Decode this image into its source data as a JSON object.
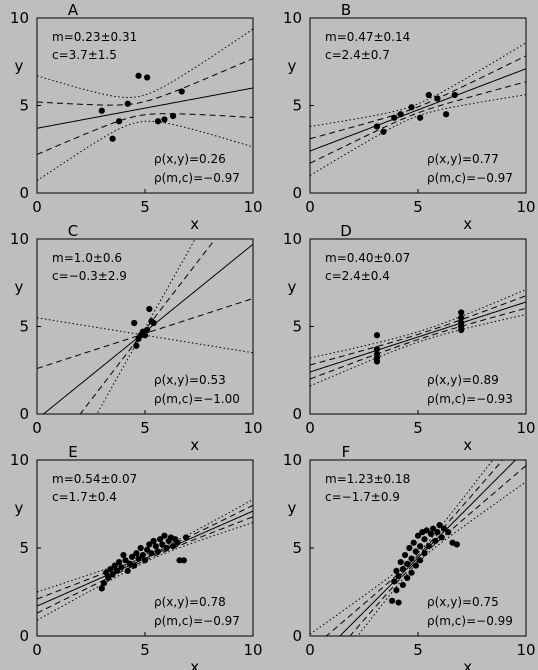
{
  "chart_data": [
    {
      "panel": "A",
      "type": "scatter",
      "xlabel": "x",
      "ylabel": "y",
      "xlim": [
        0,
        10
      ],
      "ylim": [
        0,
        10
      ],
      "x_ticks": [
        "0",
        "5",
        "10"
      ],
      "y_ticks": [
        "0",
        "5",
        "10"
      ],
      "fit_text": "m=0.23±0.31",
      "intercept_text": "c=3.7±1.5",
      "rho_xy_text": "ρ(x,y)=0.26",
      "rho_mc_text": "ρ(m,c)=−0.97",
      "fit": {
        "m": 0.23,
        "c": 3.7,
        "sm": 0.31,
        "sc": 1.5,
        "rho_mc": -0.97
      },
      "points": [
        [
          3.0,
          4.7
        ],
        [
          3.5,
          3.1
        ],
        [
          3.8,
          4.1
        ],
        [
          4.2,
          5.1
        ],
        [
          4.7,
          6.7
        ],
        [
          5.1,
          6.6
        ],
        [
          5.6,
          4.1
        ],
        [
          5.9,
          4.2
        ],
        [
          6.3,
          4.4
        ],
        [
          6.7,
          5.8
        ]
      ]
    },
    {
      "panel": "B",
      "type": "scatter",
      "xlabel": "x",
      "ylabel": "y",
      "xlim": [
        0,
        10
      ],
      "ylim": [
        0,
        10
      ],
      "x_ticks": [
        "0",
        "5",
        "10"
      ],
      "y_ticks": [
        "0",
        "5",
        "10"
      ],
      "fit_text": "m=0.47±0.14",
      "intercept_text": "c=2.4±0.7",
      "rho_xy_text": "ρ(x,y)=0.77",
      "rho_mc_text": "ρ(m,c)=−0.97",
      "fit": {
        "m": 0.47,
        "c": 2.4,
        "sm": 0.14,
        "sc": 0.7,
        "rho_mc": -0.97
      },
      "points": [
        [
          3.1,
          3.8
        ],
        [
          3.4,
          3.5
        ],
        [
          3.9,
          4.3
        ],
        [
          4.2,
          4.5
        ],
        [
          4.7,
          4.9
        ],
        [
          5.1,
          4.3
        ],
        [
          5.5,
          5.6
        ],
        [
          5.9,
          5.4
        ],
        [
          6.3,
          4.5
        ],
        [
          6.7,
          5.6
        ]
      ]
    },
    {
      "panel": "C",
      "type": "scatter",
      "xlabel": "x",
      "ylabel": "y",
      "xlim": [
        0,
        10
      ],
      "ylim": [
        0,
        10
      ],
      "x_ticks": [
        "0",
        "5",
        "10"
      ],
      "y_ticks": [
        "0",
        "5",
        "10"
      ],
      "fit_text": "m=1.0±0.6",
      "intercept_text": "c=−0.3±2.9",
      "rho_xy_text": "ρ(x,y)=0.53",
      "rho_mc_text": "ρ(m,c)=−1.00",
      "fit": {
        "m": 1.0,
        "c": -0.3,
        "sm": 0.6,
        "sc": 2.9,
        "rho_mc": -1.0
      },
      "points": [
        [
          4.5,
          5.2
        ],
        [
          4.6,
          3.9
        ],
        [
          4.7,
          4.3
        ],
        [
          4.8,
          4.5
        ],
        [
          4.9,
          4.7
        ],
        [
          5.0,
          4.5
        ],
        [
          5.1,
          4.8
        ],
        [
          5.2,
          6.0
        ],
        [
          5.3,
          5.3
        ],
        [
          5.4,
          5.2
        ]
      ]
    },
    {
      "panel": "D",
      "type": "scatter",
      "xlabel": "x",
      "ylabel": "y",
      "xlim": [
        0,
        10
      ],
      "ylim": [
        0,
        10
      ],
      "x_ticks": [
        "0",
        "5",
        "10"
      ],
      "y_ticks": [
        "0",
        "5",
        "10"
      ],
      "fit_text": "m=0.40±0.07",
      "intercept_text": "c=2.4±0.4",
      "rho_xy_text": "ρ(x,y)=0.89",
      "rho_mc_text": "ρ(m,c)=−0.93",
      "fit": {
        "m": 0.4,
        "c": 2.4,
        "sm": 0.07,
        "sc": 0.4,
        "rho_mc": -0.93
      },
      "points": [
        [
          3.1,
          4.5
        ],
        [
          3.1,
          3.7
        ],
        [
          3.1,
          3.4
        ],
        [
          3.1,
          3.2
        ],
        [
          3.1,
          3.0
        ],
        [
          7.0,
          5.8
        ],
        [
          7.0,
          5.5
        ],
        [
          7.0,
          5.2
        ],
        [
          7.0,
          5.0
        ],
        [
          7.0,
          4.8
        ]
      ]
    },
    {
      "panel": "E",
      "type": "scatter",
      "xlabel": "x",
      "ylabel": "y",
      "xlim": [
        0,
        10
      ],
      "ylim": [
        0,
        10
      ],
      "x_ticks": [
        "0",
        "5",
        "10"
      ],
      "y_ticks": [
        "0",
        "5",
        "10"
      ],
      "fit_text": "m=0.54±0.07",
      "intercept_text": "c=1.7±0.4",
      "rho_xy_text": "ρ(x,y)=0.78",
      "rho_mc_text": "ρ(m,c)=−0.97",
      "fit": {
        "m": 0.54,
        "c": 1.7,
        "sm": 0.07,
        "sc": 0.4,
        "rho_mc": -0.97
      },
      "points": [
        [
          3.0,
          2.7
        ],
        [
          3.1,
          3.0
        ],
        [
          3.2,
          3.6
        ],
        [
          3.3,
          3.3
        ],
        [
          3.4,
          3.8
        ],
        [
          3.5,
          3.5
        ],
        [
          3.6,
          4.0
        ],
        [
          3.7,
          3.7
        ],
        [
          3.8,
          4.2
        ],
        [
          3.9,
          3.9
        ],
        [
          4.0,
          4.6
        ],
        [
          4.1,
          4.3
        ],
        [
          4.2,
          3.7
        ],
        [
          4.3,
          4.1
        ],
        [
          4.4,
          4.5
        ],
        [
          4.5,
          4.0
        ],
        [
          4.6,
          4.7
        ],
        [
          4.7,
          4.4
        ],
        [
          4.8,
          5.0
        ],
        [
          4.9,
          4.6
        ],
        [
          5.0,
          4.3
        ],
        [
          5.1,
          4.9
        ],
        [
          5.2,
          5.2
        ],
        [
          5.3,
          4.7
        ],
        [
          5.4,
          5.4
        ],
        [
          5.5,
          5.1
        ],
        [
          5.6,
          4.8
        ],
        [
          5.7,
          5.5
        ],
        [
          5.8,
          5.2
        ],
        [
          5.9,
          5.7
        ],
        [
          6.0,
          5.0
        ],
        [
          6.1,
          5.4
        ],
        [
          6.2,
          5.6
        ],
        [
          6.3,
          5.1
        ],
        [
          6.4,
          5.5
        ],
        [
          6.5,
          5.3
        ],
        [
          6.6,
          4.3
        ],
        [
          6.8,
          4.3
        ],
        [
          6.9,
          5.6
        ]
      ]
    },
    {
      "panel": "F",
      "type": "scatter",
      "xlabel": "x",
      "ylabel": "y",
      "xlim": [
        0,
        10
      ],
      "ylim": [
        0,
        10
      ],
      "x_ticks": [
        "0",
        "5",
        "10"
      ],
      "y_ticks": [
        "0",
        "5",
        "10"
      ],
      "fit_text": "m=1.23±0.18",
      "intercept_text": "c=−1.7±0.9",
      "rho_xy_text": "ρ(x,y)=0.75",
      "rho_mc_text": "ρ(m,c)=−0.99",
      "fit": {
        "m": 1.23,
        "c": -1.7,
        "sm": 0.18,
        "sc": 0.9,
        "rho_mc": -0.99
      },
      "points": [
        [
          3.8,
          2.0
        ],
        [
          3.9,
          3.1
        ],
        [
          4.0,
          3.7
        ],
        [
          4.0,
          2.6
        ],
        [
          4.1,
          1.9
        ],
        [
          4.1,
          3.4
        ],
        [
          4.2,
          4.2
        ],
        [
          4.3,
          2.9
        ],
        [
          4.3,
          3.8
        ],
        [
          4.4,
          4.6
        ],
        [
          4.5,
          3.3
        ],
        [
          4.5,
          4.1
        ],
        [
          4.6,
          5.0
        ],
        [
          4.7,
          3.6
        ],
        [
          4.7,
          4.4
        ],
        [
          4.8,
          5.3
        ],
        [
          4.9,
          4.0
        ],
        [
          4.9,
          4.8
        ],
        [
          5.0,
          5.7
        ],
        [
          5.1,
          4.3
        ],
        [
          5.1,
          5.1
        ],
        [
          5.2,
          5.9
        ],
        [
          5.3,
          4.7
        ],
        [
          5.3,
          5.5
        ],
        [
          5.4,
          6.0
        ],
        [
          5.5,
          5.1
        ],
        [
          5.6,
          5.8
        ],
        [
          5.7,
          6.1
        ],
        [
          5.8,
          5.4
        ],
        [
          5.9,
          5.9
        ],
        [
          6.0,
          6.3
        ],
        [
          6.1,
          5.6
        ],
        [
          6.2,
          6.1
        ],
        [
          6.4,
          5.9
        ],
        [
          6.6,
          5.3
        ],
        [
          6.8,
          5.2
        ]
      ]
    }
  ]
}
